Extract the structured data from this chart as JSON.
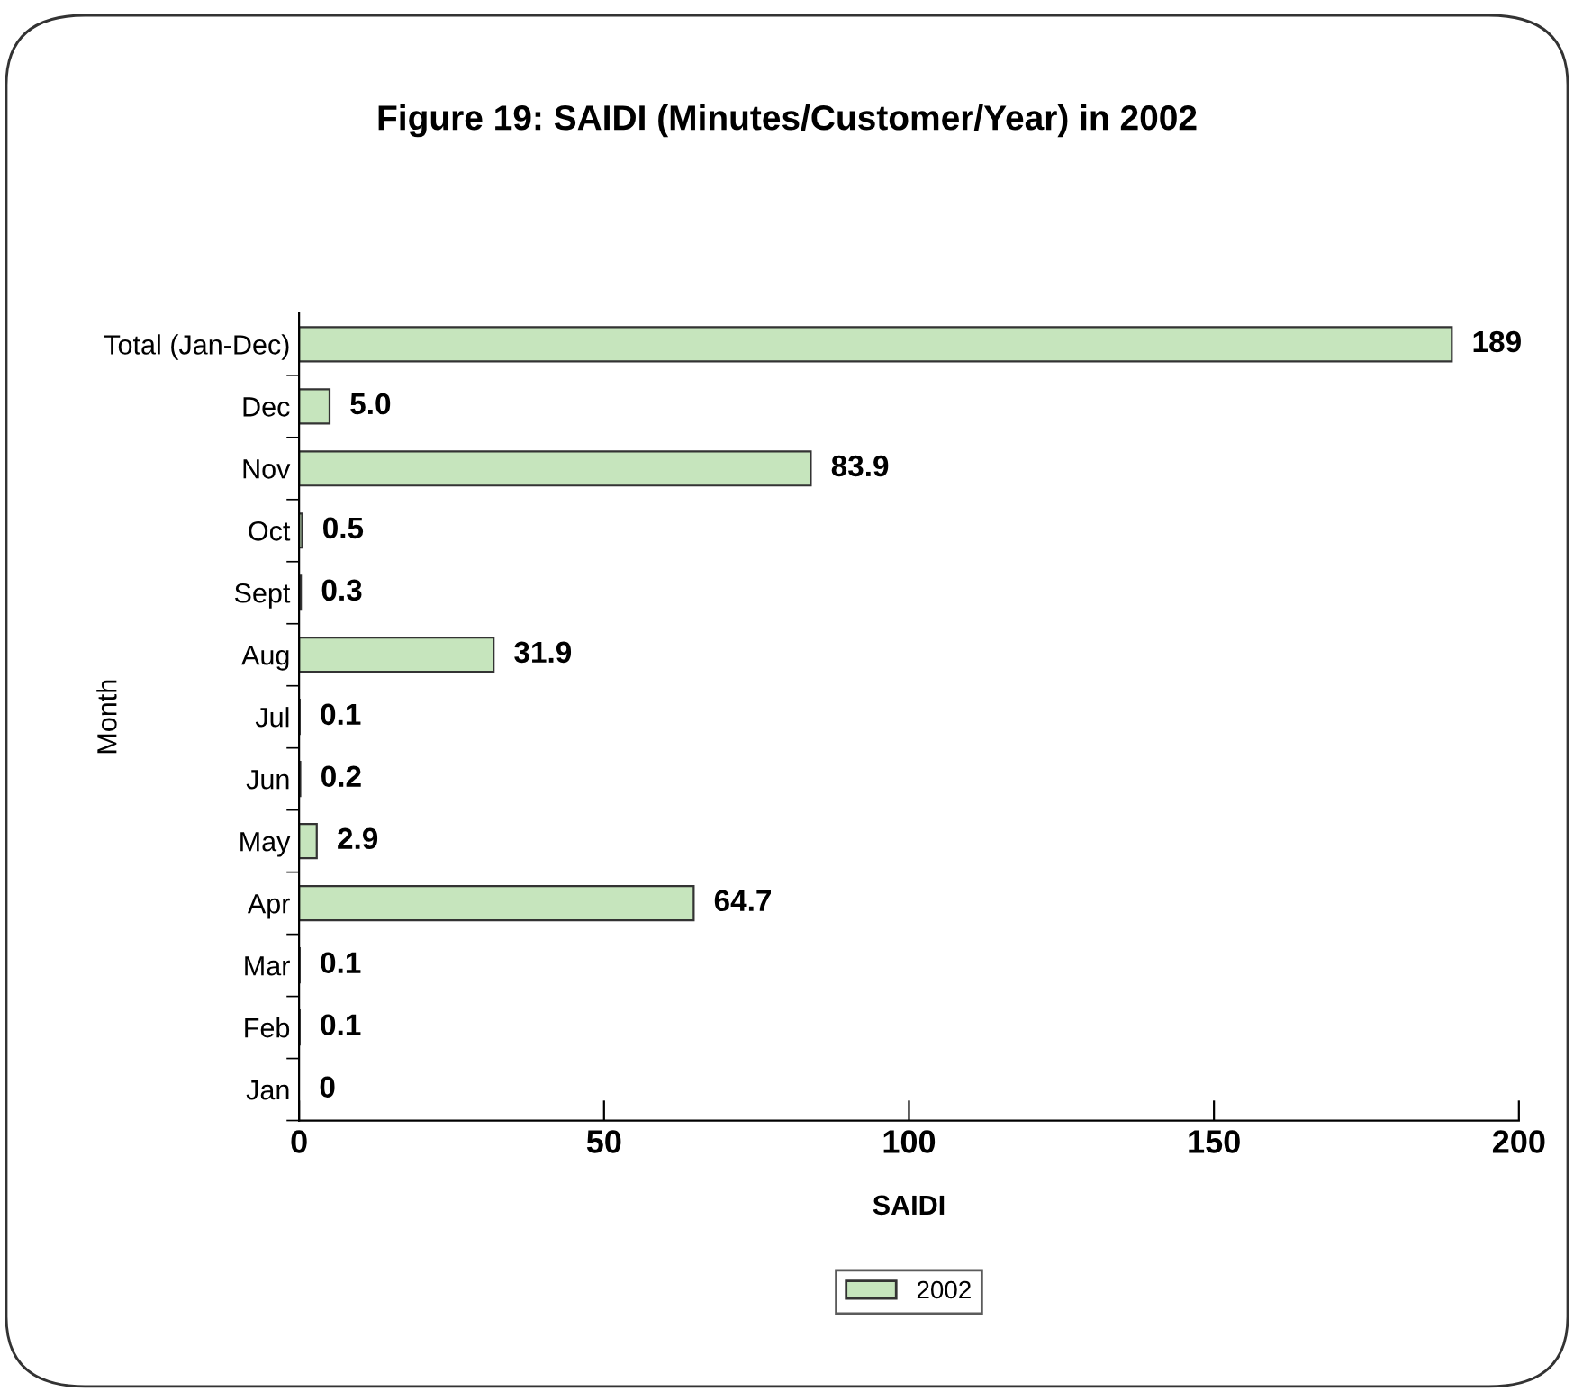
{
  "chart_data": {
    "type": "bar",
    "orientation": "horizontal",
    "title": "Figure 19: SAIDI (Minutes/Customer/Year) in 2002",
    "xlabel": "SAIDI",
    "ylabel": "Month",
    "categories": [
      "Total (Jan-Dec)",
      "Dec",
      "Nov",
      "Oct",
      "Sept",
      "Aug",
      "Jul",
      "Jun",
      "May",
      "Apr",
      "Mar",
      "Feb",
      "Jan"
    ],
    "series": [
      {
        "name": "2002",
        "color": "#c6e5bd",
        "values": [
          189,
          5.0,
          83.9,
          0.5,
          0.3,
          31.9,
          0.1,
          0.2,
          2.9,
          64.7,
          0.1,
          0.1,
          0
        ],
        "value_labels": [
          "189",
          "5.0",
          "83.9",
          "0.5",
          "0.3",
          "31.9",
          "0.1",
          "0.2",
          "2.9",
          "64.7",
          "0.1",
          "0.1",
          "0"
        ]
      }
    ],
    "xlim": [
      0,
      200
    ],
    "xticks": [
      0,
      50,
      100,
      150,
      200
    ],
    "grid": false,
    "legend": "bottom"
  }
}
